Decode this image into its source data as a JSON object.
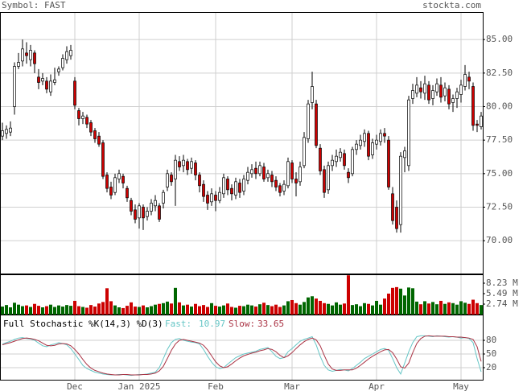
{
  "chart_data": [
    {
      "type": "candlestick",
      "title": "Symbol: FAST",
      "source": "stockta.com",
      "categories": [
        null,
        null,
        null,
        null,
        null,
        null,
        null,
        null,
        null,
        null,
        null,
        null,
        null,
        null,
        null,
        null,
        null,
        null,
        "Dec",
        null,
        null,
        null,
        null,
        null,
        null,
        null,
        null,
        null,
        null,
        null,
        null,
        null,
        null,
        null,
        "Jan 2025",
        null,
        null,
        null,
        null,
        null,
        null,
        null,
        null,
        null,
        null,
        null,
        null,
        null,
        null,
        null,
        null,
        null,
        null,
        "Feb",
        null,
        null,
        null,
        null,
        null,
        null,
        null,
        null,
        null,
        null,
        null,
        null,
        null,
        null,
        null,
        null,
        null,
        null,
        "Mar",
        null,
        null,
        null,
        null,
        null,
        null,
        null,
        null,
        null,
        null,
        null,
        null,
        null,
        null,
        null,
        null,
        null,
        null,
        null,
        null,
        "Apr",
        null,
        null,
        null,
        null,
        null,
        null,
        null,
        null,
        null,
        null,
        null,
        null,
        null,
        null,
        null,
        null,
        null,
        null,
        null,
        null,
        "May",
        null,
        null,
        null,
        null,
        null
      ],
      "open": [
        77.8,
        78.0,
        78.1,
        80.0,
        83.0,
        83.4,
        84.0,
        83.5,
        84.0,
        82.2,
        81.9,
        81.9,
        81.1,
        81.8,
        82.6,
        82.9,
        83.5,
        83.8,
        81.9,
        79.7,
        79.1,
        79.2,
        78.8,
        78.2,
        77.8,
        77.3,
        74.9,
        74.0,
        73.6,
        74.6,
        74.8,
        73.9,
        73.0,
        72.3,
        71.7,
        72.5,
        71.8,
        72.2,
        72.6,
        72.6,
        72.8,
        74.0,
        74.9,
        74.6,
        75.9,
        75.6,
        75.9,
        75.4,
        75.8,
        74.9,
        74.2,
        73.4,
        72.9,
        73.4,
        73.0,
        73.5,
        74.6,
        73.9,
        73.4,
        74.3,
        73.7,
        74.5,
        75.0,
        75.4,
        75.0,
        75.5,
        74.7,
        74.9,
        74.5,
        74.1,
        73.7,
        74.1,
        75.8,
        74.6,
        74.4,
        75.6,
        77.6,
        80.3,
        80.2,
        76.9,
        75.3,
        73.8,
        75.6,
        75.9,
        76.2,
        76.5,
        75.1,
        75.0,
        76.8,
        77.1,
        77.4,
        78.0,
        76.4,
        77.2,
        77.4,
        78.0,
        77.5,
        73.5,
        72.5,
        71.2,
        76.2,
        75.6,
        80.6,
        81.0,
        81.4,
        81.0,
        81.6,
        80.6,
        81.1,
        81.6,
        80.8,
        81.3,
        80.3,
        80.6,
        80.9,
        81.5,
        82.2,
        81.5,
        78.7,
        78.5
      ],
      "high": [
        78.8,
        78.6,
        78.9,
        83.3,
        84.0,
        85.0,
        84.8,
        84.6,
        84.2,
        82.8,
        82.5,
        82.2,
        82.4,
        82.9,
        83.0,
        83.9,
        84.5,
        84.6,
        82.2,
        79.9,
        79.6,
        79.4,
        79.0,
        78.4,
        78.1,
        77.5,
        75.1,
        74.4,
        75.0,
        75.3,
        75.0,
        74.1,
        73.2,
        72.7,
        72.8,
        72.7,
        72.5,
        73.1,
        73.4,
        72.8,
        73.8,
        75.3,
        75.1,
        76.4,
        76.3,
        76.4,
        76.1,
        76.2,
        76.0,
        75.1,
        74.5,
        73.7,
        73.9,
        73.7,
        74.0,
        75.0,
        74.8,
        74.2,
        74.7,
        74.6,
        74.9,
        75.5,
        75.7,
        75.9,
        75.9,
        75.8,
        75.3,
        75.2,
        74.8,
        74.3,
        74.5,
        76.2,
        76.0,
        75.1,
        75.9,
        78.1,
        80.5,
        82.6,
        80.5,
        77.2,
        75.6,
        75.9,
        76.4,
        76.8,
        76.9,
        76.8,
        75.4,
        77.0,
        77.5,
        77.9,
        78.3,
        78.2,
        77.6,
        77.9,
        78.3,
        78.4,
        77.8,
        74.0,
        73.0,
        76.6,
        77.0,
        80.8,
        81.7,
        82.2,
        81.9,
        82.3,
        81.9,
        81.6,
        82.1,
        82.2,
        81.8,
        81.6,
        80.9,
        81.4,
        82.0,
        83.1,
        82.6,
        81.8,
        79.0,
        79.6
      ],
      "low": [
        77.5,
        77.6,
        77.8,
        79.4,
        82.8,
        83.0,
        83.2,
        83.0,
        82.5,
        81.3,
        81.6,
        81.0,
        80.8,
        81.6,
        82.3,
        82.7,
        83.2,
        83.5,
        79.8,
        78.6,
        78.7,
        78.4,
        77.8,
        77.3,
        77.0,
        74.6,
        73.6,
        73.1,
        73.4,
        74.3,
        73.9,
        72.9,
        71.9,
        71.3,
        70.9,
        70.8,
        71.5,
        71.9,
        72.2,
        71.4,
        72.4,
        73.7,
        74.1,
        72.6,
        75.2,
        75.1,
        74.9,
        75.0,
        74.5,
        73.6,
        72.9,
        72.3,
        72.6,
        72.2,
        72.8,
        73.2,
        73.4,
        73.0,
        73.1,
        73.2,
        73.4,
        74.2,
        74.7,
        74.6,
        74.8,
        74.4,
        74.4,
        74.0,
        73.7,
        73.3,
        73.4,
        73.9,
        74.3,
        73.3,
        74.1,
        75.4,
        77.3,
        79.8,
        76.9,
        74.9,
        73.2,
        73.5,
        75.2,
        75.5,
        75.9,
        75.3,
        74.3,
        74.8,
        76.4,
        76.8,
        77.0,
        76.0,
        76.1,
        76.8,
        77.1,
        77.3,
        73.8,
        71.2,
        70.6,
        70.6,
        75.1,
        75.2,
        80.2,
        80.7,
        80.6,
        80.5,
        80.2,
        80.1,
        80.8,
        80.3,
        80.4,
        79.8,
        79.6,
        79.9,
        80.3,
        81.2,
        81.3,
        78.2,
        78.1,
        78.3
      ],
      "close": [
        78.2,
        78.3,
        78.4,
        83.0,
        83.3,
        84.3,
        83.8,
        84.2,
        83.2,
        81.8,
        82.1,
        81.3,
        81.9,
        82.0,
        82.8,
        83.6,
        84.1,
        84.2,
        80.1,
        79.1,
        79.3,
        78.7,
        78.1,
        77.6,
        77.2,
        74.8,
        73.9,
        73.4,
        74.7,
        75.0,
        74.3,
        73.2,
        72.2,
        71.6,
        72.6,
        71.7,
        72.2,
        72.8,
        73.0,
        71.6,
        73.6,
        75.0,
        74.4,
        76.0,
        75.5,
        76.0,
        75.3,
        75.9,
        74.9,
        74.1,
        73.3,
        72.8,
        73.5,
        73.0,
        73.6,
        74.7,
        73.8,
        73.5,
        74.4,
        73.6,
        74.6,
        75.1,
        75.3,
        75.0,
        75.6,
        74.6,
        75.0,
        74.4,
        74.0,
        73.6,
        74.2,
        75.9,
        74.6,
        74.3,
        75.5,
        77.7,
        80.2,
        81.5,
        77.1,
        75.2,
        73.6,
        75.6,
        76.0,
        76.3,
        76.6,
        75.6,
        74.7,
        76.8,
        77.2,
        77.5,
        78.0,
        76.3,
        77.3,
        77.5,
        78.0,
        77.8,
        74.0,
        71.5,
        70.9,
        76.3,
        76.7,
        80.5,
        81.2,
        81.6,
        81.1,
        81.7,
        80.5,
        81.2,
        81.7,
        80.7,
        81.4,
        80.2,
        80.6,
        81.1,
        81.6,
        82.4,
        81.9,
        78.6,
        78.6,
        79.3
      ],
      "ylim": [
        67.55,
        87.05
      ],
      "yticks": [
        {
          "value": 70,
          "label": "70.00"
        },
        {
          "value": 72.5,
          "label": "72.50"
        },
        {
          "value": 75,
          "label": "75.00"
        },
        {
          "value": 77.5,
          "label": "77.50"
        },
        {
          "value": 80,
          "label": "80.00"
        },
        {
          "value": 82.5,
          "label": "82.50"
        },
        {
          "value": 85,
          "label": "85.00"
        }
      ],
      "up_color": "#ffffff",
      "down_color": "#cc0000",
      "grid": true
    },
    {
      "type": "bar",
      "values": [
        2.1,
        2.5,
        1.9,
        3.1,
        2.6,
        2.2,
        2.4,
        2.0,
        2.8,
        2.3,
        1.9,
        2.2,
        2.6,
        2.0,
        2.4,
        2.1,
        2.5,
        2.3,
        3.6,
        2.2,
        2.0,
        1.8,
        2.5,
        2.1,
        2.9,
        3.3,
        6.9,
        3.5,
        2.4,
        1.9,
        1.7,
        2.3,
        3.2,
        2.1,
        2.0,
        2.4,
        1.9,
        2.2,
        2.6,
        2.8,
        3.0,
        3.4,
        2.9,
        7.0,
        3.2,
        2.4,
        2.6,
        2.1,
        2.8,
        2.2,
        2.5,
        2.0,
        3.0,
        2.3,
        2.1,
        2.4,
        2.9,
        2.0,
        1.8,
        2.3,
        2.2,
        2.6,
        2.4,
        2.1,
        2.7,
        3.1,
        2.5,
        2.2,
        2.6,
        2.0,
        2.4,
        3.5,
        3.8,
        3.0,
        2.6,
        3.3,
        4.5,
        4.8,
        4.2,
        3.6,
        3.0,
        2.8,
        2.4,
        3.2,
        2.6,
        2.9,
        10.3,
        2.5,
        2.7,
        2.2,
        3.0,
        2.8,
        2.4,
        3.6,
        2.6,
        4.2,
        5.5,
        7.0,
        7.2,
        6.8,
        5.0,
        7.1,
        6.9,
        3.4,
        2.7,
        3.5,
        2.9,
        3.3,
        2.7,
        3.6,
        2.8,
        3.2,
        3.0,
        2.6,
        3.5,
        3.1,
        2.8,
        3.9,
        3.0,
        2.5
      ],
      "ylim": [
        0,
        10.34
      ],
      "yticks": [
        {
          "value": 2.74,
          "label": "2.74 M"
        },
        {
          "value": 5.49,
          "label": "5.49 M"
        },
        {
          "value": 8.23,
          "label": "8.23 M"
        }
      ],
      "up_color": "#006600",
      "down_color": "#cc0000",
      "grid": false
    },
    {
      "type": "line",
      "title": "Full Stochastic %K(14,3) %D(3)",
      "series": [
        {
          "name": "Fast:",
          "color": "#66c6c6",
          "values": [
            72,
            75,
            78,
            82,
            85,
            86,
            84,
            83,
            80,
            74,
            68,
            66,
            70,
            72,
            75,
            73,
            70,
            62,
            50,
            38,
            25,
            18,
            14,
            10,
            8,
            6,
            5,
            4,
            4,
            5,
            5,
            4,
            3,
            4,
            5,
            5,
            6,
            8,
            10,
            20,
            40,
            60,
            75,
            82,
            84,
            80,
            78,
            76,
            75,
            72,
            60,
            45,
            32,
            22,
            18,
            20,
            28,
            35,
            42,
            46,
            50,
            52,
            54,
            56,
            60,
            62,
            64,
            55,
            45,
            40,
            42,
            55,
            62,
            70,
            78,
            82,
            85,
            88,
            70,
            45,
            25,
            15,
            12,
            14,
            16,
            15,
            13,
            18,
            25,
            32,
            40,
            45,
            50,
            55,
            60,
            62,
            58,
            40,
            20,
            6,
            30,
            55,
            75,
            88,
            90,
            90,
            89,
            88,
            90,
            89,
            88,
            87,
            88,
            87,
            85,
            86,
            84,
            75,
            40,
            10.97
          ]
        },
        {
          "name": "Slow:",
          "color": "#aa3344",
          "values": [
            70,
            73,
            75,
            78,
            81,
            84,
            85,
            84,
            82,
            79,
            74,
            69,
            68,
            69,
            72,
            73,
            72,
            68,
            60,
            50,
            38,
            27,
            19,
            14,
            11,
            8,
            6,
            5,
            4,
            4,
            5,
            5,
            4,
            4,
            4,
            5,
            5,
            6,
            8,
            13,
            23,
            40,
            58,
            72,
            80,
            82,
            80,
            78,
            76,
            74,
            69,
            59,
            46,
            33,
            24,
            20,
            22,
            28,
            35,
            41,
            46,
            49,
            52,
            54,
            57,
            59,
            62,
            60,
            55,
            47,
            42,
            46,
            53,
            62,
            70,
            77,
            82,
            85,
            81,
            68,
            47,
            28,
            17,
            14,
            14,
            15,
            15,
            15,
            19,
            25,
            32,
            39,
            45,
            50,
            55,
            59,
            60,
            53,
            39,
            22,
            19,
            30,
            53,
            73,
            84,
            89,
            90,
            89,
            89,
            89,
            89,
            88,
            88,
            87,
            87,
            86,
            85,
            82,
            66,
            33.65
          ]
        }
      ],
      "ylim": [
        0,
        100
      ],
      "yticks": [
        20,
        50,
        80
      ],
      "grid": true
    }
  ]
}
